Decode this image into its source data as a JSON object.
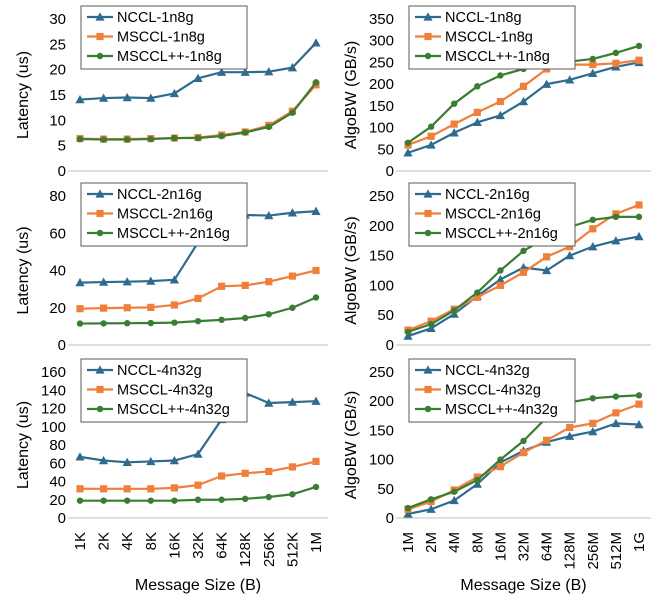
{
  "chart_data": [
    {
      "type": "line",
      "panel": "latency-1n8g",
      "ylabel": "Latency (us)",
      "xlabel": "",
      "ylim": [
        0,
        30
      ],
      "yticks": [
        0,
        5,
        10,
        15,
        20,
        25,
        30
      ],
      "categories": [
        "1K",
        "2K",
        "4K",
        "8K",
        "16K",
        "32K",
        "64K",
        "128K",
        "256K",
        "512K",
        "1M"
      ],
      "legend": "top-left",
      "series": [
        {
          "name": "NCCL-1n8g",
          "color": "#2F6B8F",
          "marker": "triangle",
          "values": [
            14.1,
            14.4,
            14.5,
            14.4,
            15.3,
            18.3,
            19.5,
            19.5,
            19.6,
            20.4,
            25.3
          ]
        },
        {
          "name": "MSCCL-1n8g",
          "color": "#F07F3C",
          "marker": "square",
          "values": [
            6.4,
            6.3,
            6.3,
            6.4,
            6.5,
            6.6,
            7.1,
            7.7,
            9.0,
            11.8,
            17.0
          ]
        },
        {
          "name": "MSCCL++-1n8g",
          "color": "#3A7D32",
          "marker": "circle",
          "values": [
            6.3,
            6.2,
            6.2,
            6.3,
            6.5,
            6.5,
            6.9,
            7.6,
            8.7,
            11.5,
            17.5
          ]
        }
      ]
    },
    {
      "type": "line",
      "panel": "algobw-1n8g",
      "ylabel": "AlgoBW (GB/s)",
      "xlabel": "",
      "ylim": [
        0,
        350
      ],
      "yticks": [
        0,
        50,
        100,
        150,
        200,
        250,
        300,
        350
      ],
      "categories": [
        "1M",
        "2M",
        "4M",
        "8M",
        "16M",
        "32M",
        "64M",
        "128M",
        "256M",
        "512M",
        "1G"
      ],
      "legend": "top-left",
      "series": [
        {
          "name": "NCCL-1n8g",
          "color": "#2F6B8F",
          "marker": "triangle",
          "values": [
            42,
            60,
            88,
            112,
            128,
            160,
            200,
            210,
            225,
            240,
            250
          ]
        },
        {
          "name": "MSCCL-1n8g",
          "color": "#F07F3C",
          "marker": "square",
          "values": [
            60,
            80,
            108,
            135,
            160,
            195,
            235,
            245,
            245,
            248,
            255
          ]
        },
        {
          "name": "MSCCL++-1n8g",
          "color": "#3A7D32",
          "marker": "circle",
          "values": [
            65,
            102,
            155,
            195,
            220,
            235,
            245,
            252,
            258,
            272,
            288
          ]
        }
      ]
    },
    {
      "type": "line",
      "panel": "latency-2n16g",
      "ylabel": "Latency (us)",
      "xlabel": "",
      "ylim": [
        0,
        80
      ],
      "yticks": [
        0,
        20,
        40,
        60,
        80
      ],
      "categories": [
        "1K",
        "2K",
        "4K",
        "8K",
        "16K",
        "32K",
        "64K",
        "128K",
        "256K",
        "512K",
        "1M"
      ],
      "legend": "top-left",
      "series": [
        {
          "name": "NCCL-2n16g",
          "color": "#2F6B8F",
          "marker": "triangle",
          "values": [
            33.5,
            33.8,
            34.0,
            34.3,
            35.0,
            55.0,
            70.0,
            69.8,
            69.5,
            71.0,
            71.8
          ]
        },
        {
          "name": "MSCCL-2n16g",
          "color": "#F07F3C",
          "marker": "square",
          "values": [
            19.5,
            19.8,
            20.0,
            20.2,
            21.5,
            25.0,
            31.5,
            32.0,
            34.0,
            37.0,
            40.0
          ]
        },
        {
          "name": "MSCCL++-2n16g",
          "color": "#3A7D32",
          "marker": "circle",
          "values": [
            11.5,
            11.6,
            11.7,
            11.8,
            12.0,
            12.8,
            13.5,
            14.5,
            16.5,
            20.0,
            25.5
          ]
        }
      ]
    },
    {
      "type": "line",
      "panel": "algobw-2n16g",
      "ylabel": "AlgoBW (GB/s)",
      "xlabel": "",
      "ylim": [
        0,
        250
      ],
      "yticks": [
        0,
        50,
        100,
        150,
        200,
        250
      ],
      "categories": [
        "1M",
        "2M",
        "4M",
        "8M",
        "16M",
        "32M",
        "64M",
        "128M",
        "256M",
        "512M",
        "1G"
      ],
      "legend": "top-left",
      "series": [
        {
          "name": "NCCL-2n16g",
          "color": "#2F6B8F",
          "marker": "triangle",
          "values": [
            15,
            28,
            52,
            82,
            110,
            130,
            125,
            150,
            165,
            175,
            182
          ]
        },
        {
          "name": "MSCCL-2n16g",
          "color": "#F07F3C",
          "marker": "square",
          "values": [
            25,
            40,
            60,
            80,
            100,
            122,
            148,
            165,
            195,
            220,
            235
          ]
        },
        {
          "name": "MSCCL++-2n16g",
          "color": "#3A7D32",
          "marker": "circle",
          "values": [
            22,
            35,
            58,
            88,
            125,
            158,
            180,
            198,
            210,
            215,
            215
          ]
        }
      ]
    },
    {
      "type": "line",
      "panel": "latency-4n32g",
      "ylabel": "Latency (us)",
      "xlabel": "Message Size (B)",
      "ylim": [
        0,
        160
      ],
      "yticks": [
        0,
        20,
        40,
        60,
        80,
        100,
        120,
        140,
        160
      ],
      "categories": [
        "1K",
        "2K",
        "4K",
        "8K",
        "16K",
        "32K",
        "64K",
        "128K",
        "256K",
        "512K",
        "1M"
      ],
      "legend": "top-left",
      "series": [
        {
          "name": "NCCL-4n32g",
          "color": "#2F6B8F",
          "marker": "triangle",
          "values": [
            67,
            63,
            61,
            62,
            63,
            70,
            108,
            137,
            126,
            127,
            128
          ]
        },
        {
          "name": "MSCCL-4n32g",
          "color": "#F07F3C",
          "marker": "square",
          "values": [
            32,
            32,
            32,
            32,
            33,
            36,
            46,
            49,
            51,
            56,
            62
          ]
        },
        {
          "name": "MSCCL++-4n32g",
          "color": "#3A7D32",
          "marker": "circle",
          "values": [
            19,
            19,
            19,
            19,
            19,
            20,
            20,
            21,
            23,
            26,
            34
          ]
        }
      ]
    },
    {
      "type": "line",
      "panel": "algobw-4n32g",
      "ylabel": "AlgoBW (GB/s)",
      "xlabel": "Message Size (B)",
      "ylim": [
        0,
        250
      ],
      "yticks": [
        0,
        50,
        100,
        150,
        200,
        250
      ],
      "categories": [
        "1M",
        "2M",
        "4M",
        "8M",
        "16M",
        "32M",
        "64M",
        "128M",
        "256M",
        "512M",
        "1G"
      ],
      "legend": "top-left",
      "series": [
        {
          "name": "NCCL-4n32g",
          "color": "#2F6B8F",
          "marker": "triangle",
          "values": [
            7,
            15,
            30,
            58,
            95,
            115,
            130,
            140,
            148,
            162,
            160
          ]
        },
        {
          "name": "MSCCL-4n32g",
          "color": "#F07F3C",
          "marker": "square",
          "values": [
            15,
            28,
            48,
            70,
            88,
            112,
            133,
            155,
            162,
            180,
            195
          ]
        },
        {
          "name": "MSCCL++-4n32g",
          "color": "#3A7D32",
          "marker": "circle",
          "values": [
            17,
            32,
            45,
            65,
            100,
            132,
            172,
            198,
            205,
            208,
            210
          ]
        }
      ]
    }
  ]
}
